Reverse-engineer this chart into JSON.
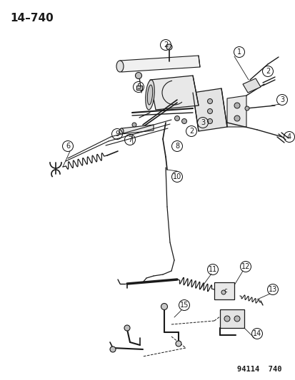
{
  "title": "14–740",
  "footer": "94114  740",
  "bg_color": "#ffffff",
  "line_color": "#1a1a1a",
  "label_color": "#1a1a1a",
  "title_fontsize": 11,
  "footer_fontsize": 7.5,
  "label_fontsize": 7
}
